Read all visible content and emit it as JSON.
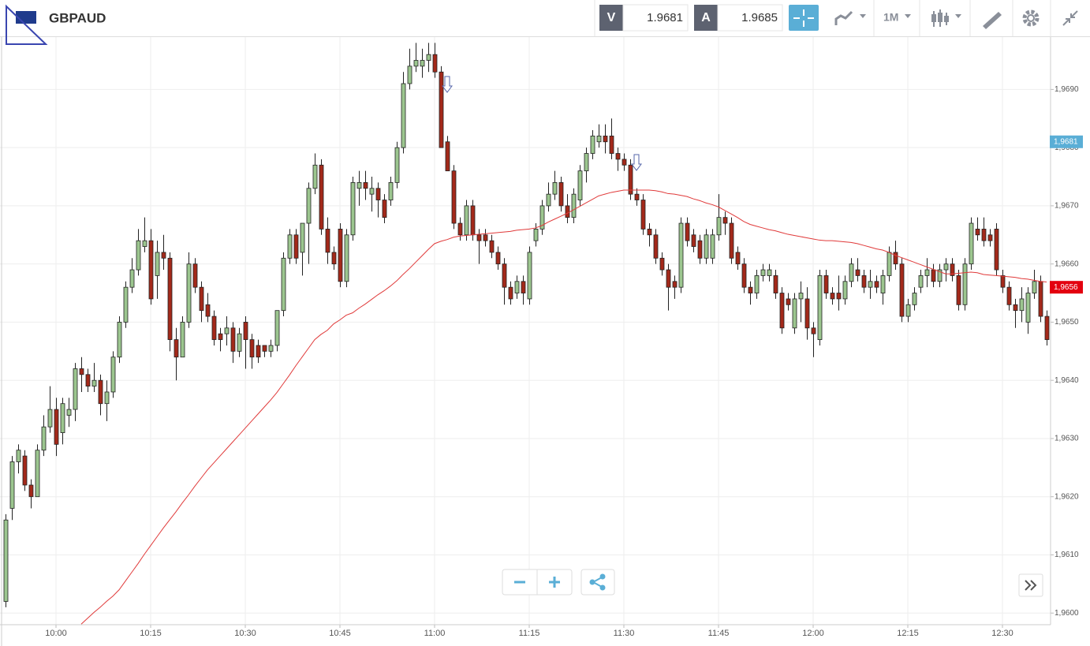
{
  "header": {
    "symbol": "GBPAUD",
    "bid_label": "V",
    "bid": "1.9681",
    "ask_label": "A",
    "ask": "1.9685",
    "timeframe": "1M"
  },
  "chart_data": {
    "type": "candlestick",
    "categories": [
      null,
      null,
      null,
      null,
      null,
      null,
      null,
      null,
      "10:00",
      null,
      null,
      null,
      null,
      null,
      null,
      null,
      null,
      null,
      null,
      null,
      null,
      null,
      null,
      "10:15",
      null,
      null,
      null,
      null,
      null,
      null,
      null,
      null,
      null,
      null,
      null,
      null,
      null,
      null,
      "10:30",
      null,
      null,
      null,
      null,
      null,
      null,
      null,
      null,
      null,
      null,
      null,
      null,
      null,
      null,
      "10:45",
      null,
      null,
      null,
      null,
      null,
      null,
      null,
      null,
      null,
      null,
      null,
      null,
      null,
      null,
      "11:00",
      null,
      null,
      null,
      null,
      null,
      null,
      null,
      null,
      null,
      null,
      null,
      null,
      null,
      null,
      "11:15",
      null,
      null,
      null,
      null,
      null,
      null,
      null,
      null,
      null,
      null,
      null,
      null,
      null,
      null,
      "11:30",
      null,
      null,
      null,
      null,
      null,
      null,
      null,
      null,
      null,
      null,
      null,
      null,
      null,
      null,
      "11:45",
      null,
      null,
      null,
      null,
      null,
      null,
      null,
      null,
      null,
      null,
      null,
      null,
      null,
      null,
      "12:00",
      null,
      null,
      null,
      null,
      null,
      null,
      null,
      null,
      null,
      null,
      null,
      null,
      null,
      null,
      "12:15",
      null,
      null,
      null,
      null,
      null,
      null,
      null,
      null,
      null,
      null,
      null,
      null,
      null,
      null,
      "12:30",
      null,
      null,
      null,
      null,
      null,
      null,
      null
    ],
    "open": [
      1.9602,
      1.9618,
      1.9626,
      1.9627,
      1.9622,
      1.962,
      1.9628,
      1.9632,
      1.9635,
      1.9631,
      1.9634,
      1.9635,
      1.9642,
      1.9641,
      1.9639,
      1.964,
      1.9636,
      1.9638,
      1.9644,
      1.965,
      1.9656,
      1.9659,
      1.9663,
      1.9664,
      1.9658,
      1.9662,
      1.9661,
      1.9647,
      1.9644,
      1.965,
      1.966,
      1.9656,
      1.9653,
      1.9651,
      1.9648,
      1.9648,
      1.9649,
      1.9645,
      1.965,
      1.9647,
      1.9646,
      1.9646,
      1.9645,
      1.9646,
      1.9652,
      1.9661,
      1.9665,
      1.9662,
      1.9667,
      1.9673,
      1.9677,
      1.9666,
      1.9662,
      1.9666,
      1.9657,
      1.9665,
      1.9673,
      1.9674,
      1.9672,
      1.9673,
      1.9671,
      1.9671,
      1.9674,
      1.968,
      1.9691,
      1.9694,
      1.9694,
      1.9695,
      1.9696,
      1.9693,
      1.9681,
      1.9676,
      1.9667,
      1.9665,
      1.967,
      1.9665,
      1.9665,
      1.9664,
      1.9662,
      1.966,
      1.9656,
      1.9655,
      1.9657,
      1.9654,
      1.9664,
      1.9666,
      1.967,
      1.9672,
      1.9674,
      1.967,
      1.9668,
      1.9671,
      1.9676,
      1.9679,
      1.9681,
      1.9682,
      1.9682,
      1.9679,
      1.9678,
      1.9677,
      1.9672,
      1.9671,
      1.9666,
      1.9665,
      1.9661,
      1.9659,
      1.9657,
      1.9656,
      1.9667,
      1.9665,
      1.9664,
      1.9661,
      1.9661,
      1.9665,
      1.9668,
      1.9667,
      1.9662,
      1.966,
      1.9656,
      1.9655,
      1.9658,
      1.9658,
      1.9658,
      1.9655,
      1.9654,
      1.9649,
      1.9654,
      1.9654,
      1.9649,
      1.9647,
      1.9658,
      1.9655,
      1.9655,
      1.9654,
      1.9657,
      1.9659,
      1.9658,
      1.9656,
      1.9657,
      1.9655,
      1.9658,
      1.9662,
      1.966,
      1.9651,
      1.9653,
      1.9656,
      1.9658,
      1.9659,
      1.9657,
      1.9659,
      1.966,
      1.9658,
      1.9653,
      1.966,
      1.9666,
      1.9666,
      1.9665,
      1.9666,
      1.9658,
      1.9656,
      1.9653,
      1.9652,
      1.965,
      1.9655,
      1.9657,
      1.9651
    ],
    "high": [
      1.9617,
      1.9627,
      1.9629,
      1.9628,
      1.9623,
      1.9629,
      1.9634,
      1.9639,
      1.9637,
      1.9637,
      1.9637,
      1.9643,
      1.9644,
      1.9642,
      1.9643,
      1.9641,
      1.964,
      1.9645,
      1.9651,
      1.9657,
      1.9661,
      1.9666,
      1.9668,
      1.9666,
      1.9664,
      1.9665,
      1.9662,
      1.9649,
      1.9651,
      1.9662,
      1.9661,
      1.9657,
      1.9655,
      1.9652,
      1.9649,
      1.9651,
      1.965,
      1.9649,
      1.9651,
      1.9648,
      1.9647,
      1.9646,
      1.9647,
      1.9652,
      1.9662,
      1.9666,
      1.9666,
      1.9667,
      1.9674,
      1.9679,
      1.9678,
      1.9668,
      1.9663,
      1.9667,
      1.9666,
      1.9675,
      1.9676,
      1.9676,
      1.9675,
      1.9674,
      1.9672,
      1.9675,
      1.9681,
      1.9693,
      1.9697,
      1.9698,
      1.9697,
      1.9698,
      1.9698,
      1.9694,
      1.9682,
      1.9677,
      1.9668,
      1.9671,
      1.9671,
      1.9666,
      1.9666,
      1.9665,
      1.9663,
      1.9661,
      1.9657,
      1.9658,
      1.9658,
      1.9663,
      1.9667,
      1.9671,
      1.9674,
      1.9676,
      1.9675,
      1.9672,
      1.9673,
      1.9677,
      1.968,
      1.9683,
      1.9684,
      1.9684,
      1.9685,
      1.968,
      1.9679,
      1.9678,
      1.9673,
      1.9672,
      1.9667,
      1.9666,
      1.9662,
      1.966,
      1.9658,
      1.9668,
      1.9668,
      1.9666,
      1.9665,
      1.9666,
      1.9666,
      1.9672,
      1.9669,
      1.9668,
      1.9663,
      1.9661,
      1.9657,
      1.9659,
      1.966,
      1.966,
      1.9659,
      1.9656,
      1.9655,
      1.9655,
      1.9657,
      1.9656,
      1.965,
      1.9659,
      1.9659,
      1.9656,
      1.9658,
      1.9658,
      1.9661,
      1.9661,
      1.9659,
      1.9659,
      1.9658,
      1.9659,
      1.9663,
      1.9664,
      1.9661,
      1.9654,
      1.9656,
      1.9659,
      1.9661,
      1.966,
      1.966,
      1.9661,
      1.9661,
      1.9659,
      1.9661,
      1.9668,
      1.9668,
      1.9668,
      1.9666,
      1.9667,
      1.9659,
      1.9657,
      1.9654,
      1.9656,
      1.9656,
      1.9659,
      1.9658,
      1.9652
    ],
    "low": [
      1.9601,
      1.9616,
      1.9624,
      1.9621,
      1.9618,
      1.962,
      1.9627,
      1.9631,
      1.9627,
      1.9629,
      1.9632,
      1.9633,
      1.9638,
      1.9638,
      1.9638,
      1.9634,
      1.9633,
      1.9637,
      1.9643,
      1.9649,
      1.9655,
      1.9658,
      1.9662,
      1.9653,
      1.9654,
      1.9659,
      1.9645,
      1.964,
      1.9644,
      1.9649,
      1.9655,
      1.965,
      1.965,
      1.9646,
      1.9645,
      1.9646,
      1.9643,
      1.9644,
      1.9642,
      1.9642,
      1.9643,
      1.9644,
      1.9644,
      1.9645,
      1.9651,
      1.966,
      1.966,
      1.9658,
      1.966,
      1.9672,
      1.9665,
      1.966,
      1.9659,
      1.9656,
      1.9656,
      1.9664,
      1.967,
      1.9671,
      1.9669,
      1.9668,
      1.9667,
      1.967,
      1.9673,
      1.9679,
      1.969,
      1.9693,
      1.9692,
      1.9693,
      1.9692,
      1.968,
      1.9676,
      1.9666,
      1.9664,
      1.9664,
      1.9664,
      1.966,
      1.9663,
      1.9661,
      1.9659,
      1.9653,
      1.9653,
      1.9654,
      1.9653,
      1.9653,
      1.9663,
      1.9665,
      1.9669,
      1.9671,
      1.9669,
      1.9667,
      1.9667,
      1.967,
      1.9674,
      1.9678,
      1.968,
      1.9679,
      1.9678,
      1.9676,
      1.9676,
      1.9671,
      1.967,
      1.9665,
      1.9663,
      1.966,
      1.9658,
      1.9652,
      1.9654,
      1.9655,
      1.9663,
      1.9662,
      1.966,
      1.966,
      1.966,
      1.9664,
      1.9665,
      1.966,
      1.9659,
      1.9655,
      1.9653,
      1.9654,
      1.9657,
      1.9657,
      1.9654,
      1.9648,
      1.9652,
      1.9648,
      1.965,
      1.9647,
      1.9644,
      1.9646,
      1.9654,
      1.9653,
      1.9652,
      1.9653,
      1.9656,
      1.9657,
      1.9655,
      1.9654,
      1.9655,
      1.9653,
      1.9657,
      1.9659,
      1.965,
      1.965,
      1.9652,
      1.9655,
      1.9656,
      1.9656,
      1.9656,
      1.9657,
      1.9657,
      1.9652,
      1.9652,
      1.9659,
      1.9664,
      1.9663,
      1.9663,
      1.9658,
      1.9655,
      1.9652,
      1.9649,
      1.965,
      1.9648,
      1.9654,
      1.965,
      1.9646
    ],
    "close": [
      1.9616,
      1.9626,
      1.9628,
      1.9622,
      1.962,
      1.9628,
      1.9632,
      1.9635,
      1.9629,
      1.9636,
      1.9635,
      1.9642,
      1.9641,
      1.9639,
      1.964,
      1.9636,
      1.9638,
      1.9644,
      1.965,
      1.9656,
      1.9659,
      1.9664,
      1.9664,
      1.9654,
      1.9662,
      1.9661,
      1.9647,
      1.9644,
      1.965,
      1.966,
      1.9656,
      1.9652,
      1.9651,
      1.9647,
      1.9647,
      1.9649,
      1.9645,
      1.9648,
      1.9647,
      1.9644,
      1.9644,
      1.9645,
      1.9646,
      1.9652,
      1.9661,
      1.9665,
      1.9661,
      1.9667,
      1.9673,
      1.9677,
      1.9666,
      1.9662,
      1.966,
      1.9657,
      1.9665,
      1.9674,
      1.9674,
      1.9673,
      1.9673,
      1.9671,
      1.9668,
      1.9674,
      1.968,
      1.9691,
      1.9694,
      1.9695,
      1.9695,
      1.9696,
      1.9693,
      1.968,
      1.9676,
      1.9667,
      1.9665,
      1.967,
      1.9665,
      1.9664,
      1.9664,
      1.9662,
      1.966,
      1.9656,
      1.9654,
      1.9657,
      1.9655,
      1.9662,
      1.9666,
      1.967,
      1.9672,
      1.9674,
      1.967,
      1.9668,
      1.9672,
      1.9676,
      1.9679,
      1.9682,
      1.9682,
      1.9681,
      1.9679,
      1.9678,
      1.9677,
      1.9672,
      1.9671,
      1.9666,
      1.9665,
      1.9661,
      1.9659,
      1.9656,
      1.9656,
      1.9667,
      1.9664,
      1.9663,
      1.9661,
      1.9665,
      1.9665,
      1.9668,
      1.9667,
      1.9661,
      1.966,
      1.9656,
      1.9655,
      1.9658,
      1.9659,
      1.9659,
      1.9655,
      1.9649,
      1.9653,
      1.9654,
      1.9655,
      1.9649,
      1.9648,
      1.9658,
      1.9655,
      1.9654,
      1.9654,
      1.9657,
      1.966,
      1.9658,
      1.9656,
      1.9657,
      1.9656,
      1.9658,
      1.9662,
      1.966,
      1.9651,
      1.9653,
      1.9655,
      1.9658,
      1.9659,
      1.9657,
      1.9659,
      1.966,
      1.9658,
      1.9653,
      1.966,
      1.9667,
      1.9665,
      1.9664,
      1.9664,
      1.9659,
      1.9656,
      1.9653,
      1.9652,
      1.9654,
      1.9655,
      1.9657,
      1.9651,
      1.9647
    ],
    "up_color": "#9cc68f",
    "down_color": "#a3291a",
    "lines": [
      {
        "color": "#e03a3a",
        "values": [
          null,
          null,
          null,
          null,
          null,
          null,
          null,
          null,
          null,
          null,
          null,
          null,
          1.95981,
          1.95991,
          1.96001,
          1.9601,
          1.9602,
          1.96029,
          1.9604,
          1.96055,
          1.9607,
          1.96085,
          1.96101,
          1.96116,
          1.96131,
          1.96146,
          1.9616,
          1.96174,
          1.96189,
          1.96203,
          1.96218,
          1.96232,
          1.96246,
          1.96258,
          1.9627,
          1.96282,
          1.96294,
          1.96306,
          1.96318,
          1.9633,
          1.96342,
          1.96354,
          1.96366,
          1.96379,
          1.96394,
          1.96409,
          1.96425,
          1.9644,
          1.96455,
          1.9647,
          1.96479,
          1.96486,
          1.96497,
          1.96504,
          1.96512,
          1.96516,
          1.96524,
          1.96531,
          1.96539,
          1.96547,
          1.96554,
          1.96562,
          1.96571,
          1.96582,
          1.96592,
          1.96603,
          1.96614,
          1.96625,
          1.96635,
          1.96639,
          1.96642,
          1.96646,
          1.96648,
          1.96649,
          1.9665,
          1.96651,
          1.96652,
          1.96653,
          1.96654,
          1.96655,
          1.96656,
          1.96658,
          1.96659,
          1.9666,
          1.96662,
          1.96666,
          1.96672,
          1.96677,
          1.96682,
          1.96687,
          1.96693,
          1.96699,
          1.96705,
          1.96711,
          1.96717,
          1.9672,
          1.96723,
          1.96725,
          1.96727,
          1.96727,
          1.96727,
          1.96727,
          1.96727,
          1.96726,
          1.96724,
          1.96721,
          1.9672,
          1.96718,
          1.96716,
          1.96712,
          1.96709,
          1.96705,
          1.96702,
          1.96698,
          1.96692,
          1.96686,
          1.9668,
          1.96673,
          1.96668,
          1.96665,
          1.96662,
          1.96659,
          1.96657,
          1.96654,
          1.96651,
          1.96649,
          1.96647,
          1.96645,
          1.96643,
          1.96641,
          1.9664,
          1.9664,
          1.96639,
          1.96638,
          1.96637,
          1.96635,
          1.96632,
          1.96629,
          1.96626,
          1.96624,
          1.9662,
          1.96615,
          1.96611,
          1.96607,
          1.96603,
          1.96599,
          1.96595,
          1.96591,
          1.96587,
          1.96583,
          1.96583,
          1.96584,
          1.96585,
          1.96586,
          1.96585,
          1.96582,
          1.96581,
          1.9658,
          1.96579,
          1.96578,
          1.96577,
          1.96575,
          1.96574,
          1.96572,
          1.9657,
          1.96569
        ]
      }
    ],
    "ylim": [
      1.9598,
      1.9699
    ],
    "yticks": [
      {
        "value": 1.96,
        "label": "1,9600"
      },
      {
        "value": 1.961,
        "label": "1,9610"
      },
      {
        "value": 1.962,
        "label": "1,9620"
      },
      {
        "value": 1.963,
        "label": "1,9630"
      },
      {
        "value": 1.964,
        "label": "1,9640"
      },
      {
        "value": 1.965,
        "label": "1,9650"
      },
      {
        "value": 1.966,
        "label": "1,9660"
      },
      {
        "value": 1.967,
        "label": "1,9670"
      },
      {
        "value": 1.968,
        "label": "1,9680"
      },
      {
        "value": 1.969,
        "label": "1,9690"
      }
    ],
    "grid": true,
    "price_markers": [
      {
        "value": 1.9681,
        "label": "1,9681",
        "color": "#5aaed6"
      },
      {
        "value": 1.9656,
        "label": "1,9656",
        "color": "#e3000f"
      }
    ]
  }
}
